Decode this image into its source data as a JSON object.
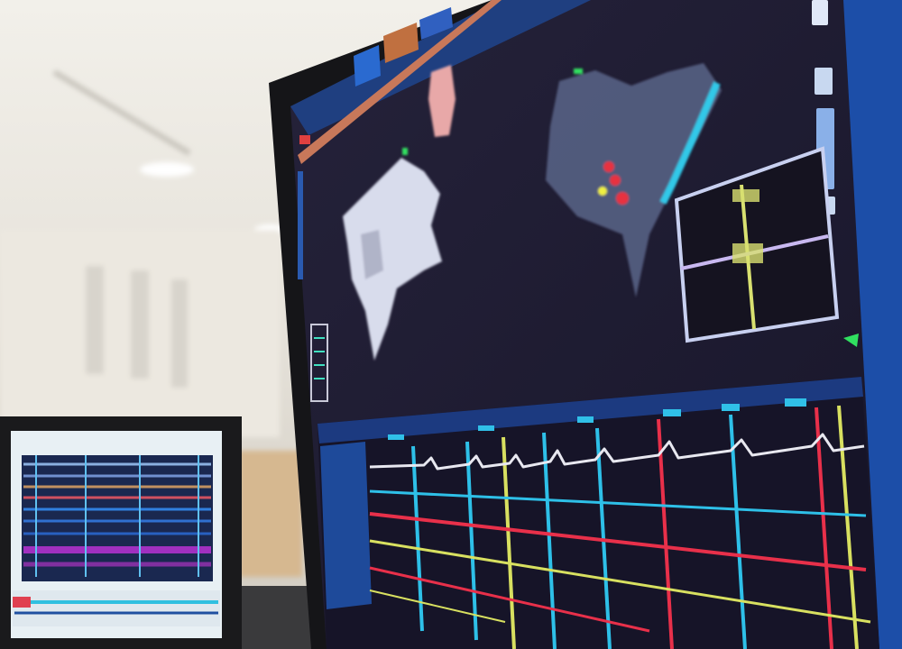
{
  "scene": {
    "description_tag": "",
    "colors": {
      "room_background": "#e8e6e0",
      "screen_background": "#1e1b2e",
      "toolbar_blue": "#1f4f9a",
      "accent_orange": "#c8785a",
      "ecg_white": "#e8e8f0",
      "ecg_cyan": "#2ec0e8",
      "ecg_red": "#e8304a",
      "ecg_yellow": "#d8e060",
      "ecg_magenta": "#b030c0",
      "anatomy_white": "#d8dcec",
      "anatomy_pink": "#e8a8a8",
      "anatomy_blue_gray": "#5a6488"
    }
  }
}
